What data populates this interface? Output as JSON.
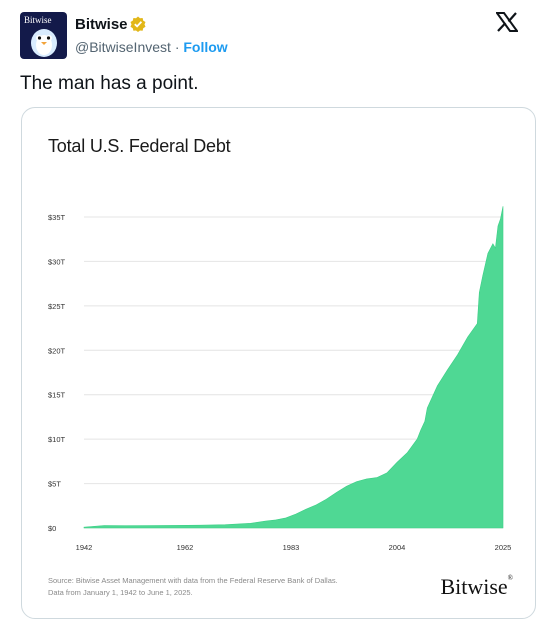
{
  "tweet": {
    "author_name": "Bitwise",
    "avatar_wordmark": "Bitwise",
    "handle": "@BitwiseInvest",
    "separator": "·",
    "follow_label": "Follow",
    "text": "The man has a point.",
    "icons": {
      "verified": "verified-badge-icon",
      "platform": "x-logo-icon"
    }
  },
  "card": {
    "footnote_line1": "Source: Bitwise Asset Management with data from the Federal Reserve Bank of Dallas.",
    "footnote_line2": "Data from January 1, 1942 to June 1, 2025.",
    "brand": "Bitwise",
    "brand_mark": "®"
  },
  "colors": {
    "fill": "#4fd894",
    "grid": "#e4e4e4",
    "follow": "#1d9bf0",
    "verified": "#e2b719",
    "avatar_bg": "#131a4a"
  },
  "chart_data": {
    "type": "area",
    "title": "Total U.S. Federal Debt",
    "xlabel": "",
    "ylabel": "",
    "xlim": [
      1942,
      2025
    ],
    "ylim": [
      0,
      35
    ],
    "x_ticks": [
      "1942",
      "1962",
      "1983",
      "2004",
      "2025"
    ],
    "y_ticks": [
      "$0",
      "$5T",
      "$10T",
      "$15T",
      "$20T",
      "$25T",
      "$30T",
      "$35T"
    ],
    "grid": true,
    "series": [
      {
        "x": [
          1942,
          1946,
          1950,
          1955,
          1960,
          1965,
          1970,
          1975,
          1978,
          1980,
          1982,
          1984,
          1986,
          1988,
          1990,
          1992,
          1994,
          1996,
          1998,
          2000,
          2002,
          2004,
          2006,
          2008,
          2008.7,
          2009.5,
          2010,
          2012,
          2014,
          2016,
          2018,
          2019.9,
          2020.3,
          2021,
          2022,
          2023,
          2023.5,
          2024,
          2024.5,
          2025
        ],
        "y": [
          0.1,
          0.27,
          0.26,
          0.27,
          0.29,
          0.32,
          0.37,
          0.53,
          0.78,
          0.91,
          1.14,
          1.57,
          2.12,
          2.6,
          3.23,
          4.0,
          4.69,
          5.22,
          5.53,
          5.67,
          6.2,
          7.38,
          8.45,
          10.0,
          11.0,
          12.0,
          13.5,
          16.0,
          17.8,
          19.5,
          21.5,
          23.0,
          26.5,
          28.4,
          30.9,
          32.0,
          31.5,
          34.0,
          34.8,
          36.2
        ]
      }
    ]
  }
}
